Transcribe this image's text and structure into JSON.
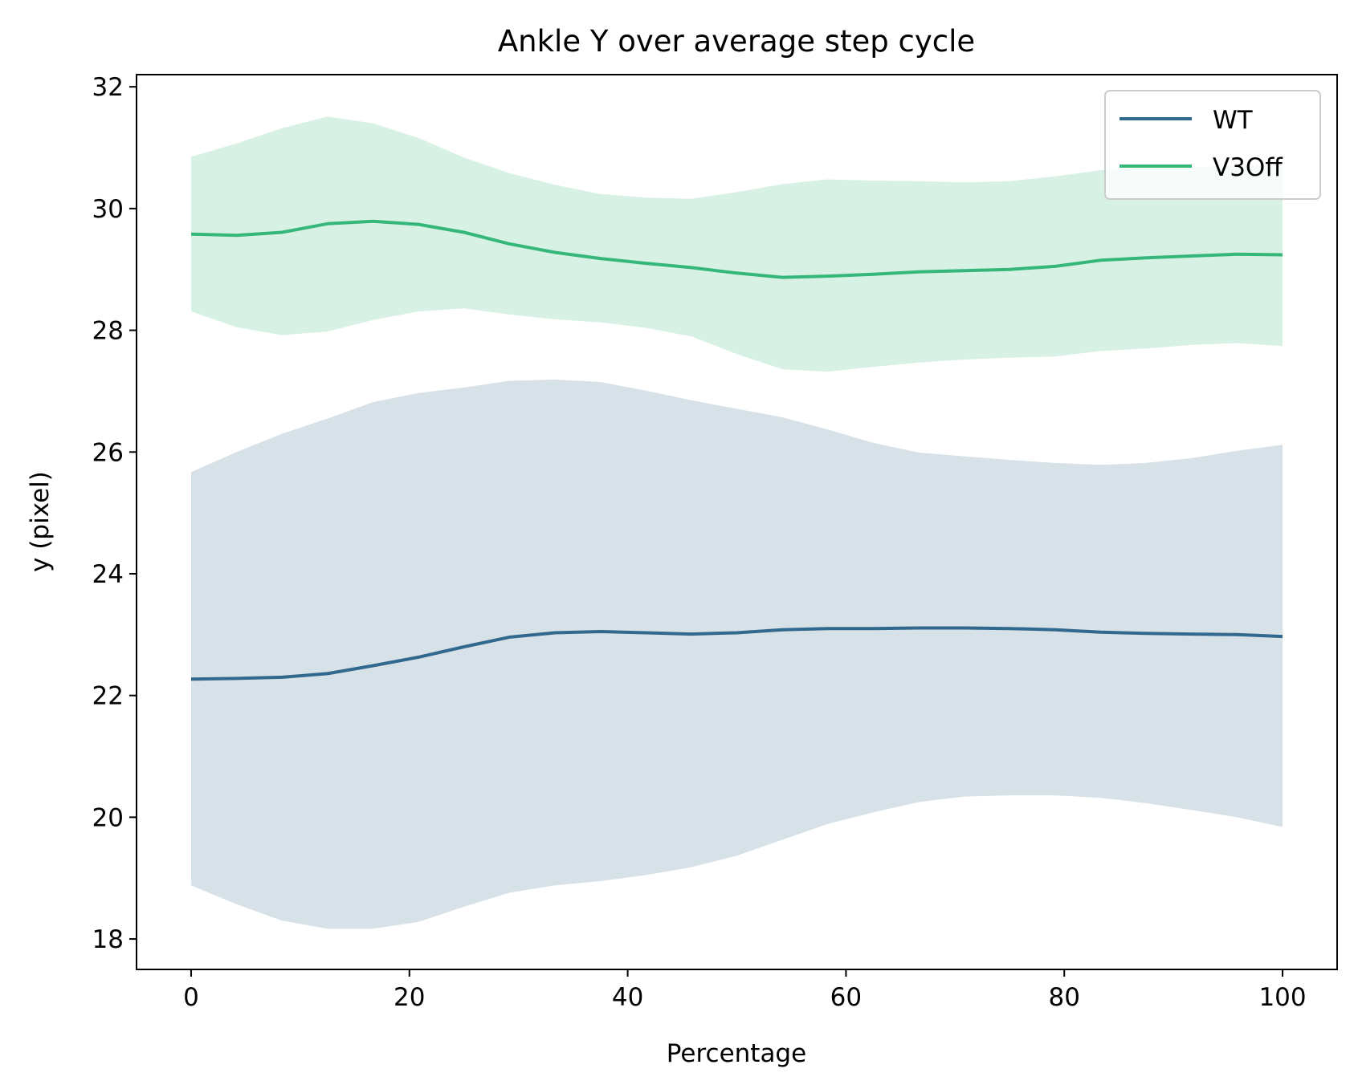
{
  "chart_data": {
    "type": "line",
    "title": "Ankle Y over average step cycle",
    "xlabel": "Percentage",
    "ylabel": "y (pixel)",
    "xlim": [
      -5,
      105
    ],
    "ylim": [
      17.5,
      32.2
    ],
    "xticks": [
      "0",
      "20",
      "40",
      "60",
      "80",
      "100"
    ],
    "yticks": [
      "18",
      "20",
      "22",
      "24",
      "26",
      "28",
      "30",
      "32"
    ],
    "grid": false,
    "legend": "upper right",
    "x": [
      0,
      4.17,
      8.33,
      12.5,
      16.67,
      20.83,
      25,
      29.17,
      33.33,
      37.5,
      41.67,
      45.83,
      50,
      54.17,
      58.33,
      62.5,
      66.67,
      70.83,
      75,
      79.17,
      83.33,
      87.5,
      91.67,
      95.83,
      100
    ],
    "series": [
      {
        "name": "WT",
        "color": "#31688e",
        "values": [
          22.27,
          22.28,
          22.3,
          22.36,
          22.49,
          22.63,
          22.8,
          22.96,
          23.03,
          23.05,
          23.03,
          23.01,
          23.03,
          23.08,
          23.1,
          23.1,
          23.11,
          23.11,
          23.1,
          23.08,
          23.04,
          23.02,
          23.01,
          23.0,
          22.97
        ],
        "upper": [
          25.67,
          26.0,
          26.3,
          26.55,
          26.82,
          26.97,
          27.06,
          27.17,
          27.19,
          27.15,
          27.01,
          26.85,
          26.71,
          26.57,
          26.37,
          26.15,
          25.99,
          25.93,
          25.87,
          25.82,
          25.79,
          25.82,
          25.9,
          26.02,
          26.12
        ],
        "lower": [
          18.88,
          18.57,
          18.3,
          18.17,
          18.17,
          18.28,
          18.53,
          18.76,
          18.88,
          18.95,
          19.05,
          19.18,
          19.37,
          19.63,
          19.89,
          20.08,
          20.25,
          20.34,
          20.36,
          20.36,
          20.32,
          20.23,
          20.12,
          20.0,
          19.84
        ]
      },
      {
        "name": "V3Off",
        "color": "#35b779",
        "values": [
          29.58,
          29.56,
          29.61,
          29.75,
          29.79,
          29.74,
          29.61,
          29.42,
          29.28,
          29.18,
          29.1,
          29.03,
          28.94,
          28.87,
          28.89,
          28.92,
          28.96,
          28.98,
          29.0,
          29.05,
          29.15,
          29.19,
          29.22,
          29.25,
          29.24
        ],
        "upper": [
          30.85,
          31.07,
          31.32,
          31.51,
          31.4,
          31.16,
          30.84,
          30.58,
          30.39,
          30.24,
          30.18,
          30.16,
          30.27,
          30.4,
          30.48,
          30.46,
          30.45,
          30.43,
          30.45,
          30.53,
          30.63,
          30.68,
          30.69,
          30.7,
          30.73
        ],
        "lower": [
          28.31,
          28.05,
          27.92,
          27.98,
          28.17,
          28.31,
          28.36,
          28.26,
          28.18,
          28.13,
          28.04,
          27.9,
          27.61,
          27.36,
          27.32,
          27.4,
          27.47,
          27.52,
          27.55,
          27.57,
          27.66,
          27.7,
          27.76,
          27.79,
          27.74
        ]
      }
    ]
  }
}
